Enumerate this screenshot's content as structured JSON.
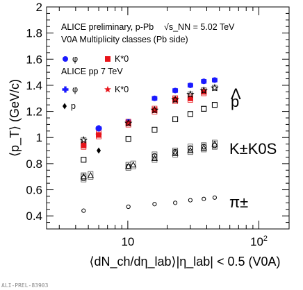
{
  "chart_data": {
    "type": "scatter",
    "title": "",
    "xscale": "log",
    "xlim": [
      2.4,
      170
    ],
    "ylim": [
      0.3,
      2.0
    ],
    "xticks": [
      {
        "v": 10,
        "label": "10"
      },
      {
        "v": 100,
        "label": "10^2"
      }
    ],
    "yticks": [
      "0.4",
      "0.6",
      "0.8",
      "1",
      "1.2",
      "1.4",
      "1.6",
      "1.8",
      "2"
    ],
    "xlabel": "⟨dN_ch/dη_lab⟩|η_lab| < 0.5 (V0A)",
    "ylabel": "⟨p_T⟩ (GeV/c)",
    "grid": false,
    "legend_position": "top-left",
    "annotations": {
      "header": [
        "ALICE preliminary, p-Pb",
        "√s_NN = 5.02 TeV",
        "V0A Multiplicity classes (Pb side)"
      ],
      "pp_header": "ALICE pp 7 TeV",
      "species": [
        "Λ",
        "p",
        "K±K0S",
        "π±"
      ],
      "footer": "ALI-PREL-83903"
    },
    "series": [
      {
        "name": "φ",
        "system": "p-Pb",
        "color": "#1a1aff",
        "marker": "circle",
        "x": [
          4.6,
          6.0,
          10.1,
          16.0,
          23.0,
          30.0,
          38.0,
          46.0
        ],
        "y": [
          0.94,
          1.07,
          1.12,
          1.3,
          1.36,
          1.4,
          1.43,
          1.44
        ]
      },
      {
        "name": "K*0",
        "system": "p-Pb",
        "color": "#e8141a",
        "marker": "square",
        "x": [
          4.6,
          6.0,
          10.1,
          16.0,
          23.0,
          30.0,
          38.0
        ],
        "y": [
          0.94,
          1.02,
          1.11,
          1.21,
          1.29,
          1.3,
          1.35
        ]
      },
      {
        "name": "φ",
        "system": "pp 7 TeV",
        "color": "#1a1aff",
        "marker": "cross",
        "x": [
          6.0
        ],
        "y": [
          1.07
        ]
      },
      {
        "name": "K*0",
        "system": "pp 7 TeV",
        "color": "#e8141a",
        "marker": "star",
        "x": [
          6.0
        ],
        "y": [
          1.02
        ]
      },
      {
        "name": "p",
        "system": "pp 7 TeV",
        "color": "#000000",
        "marker": "diamond",
        "x": [
          6.0
        ],
        "y": [
          0.9
        ]
      },
      {
        "name": "Λ",
        "color": "#000000",
        "marker": "star-open",
        "x": [
          4.6,
          10.1,
          16.0,
          23.0,
          30.0,
          38.0,
          46.0
        ],
        "y": [
          0.98,
          1.11,
          1.21,
          1.29,
          1.33,
          1.36,
          1.38
        ]
      },
      {
        "name": "p",
        "color": "#000000",
        "marker": "square-open",
        "x": [
          4.6,
          10.1,
          16.0,
          23.0,
          30.0,
          38.0,
          46.0
        ],
        "y": [
          0.83,
          0.99,
          1.06,
          1.14,
          1.18,
          1.22,
          1.25
        ]
      },
      {
        "name": "K±",
        "color": "#000000",
        "marker": "triangle-open",
        "x": [
          4.6,
          5.2,
          10.1,
          11.0,
          16.0,
          23.0,
          30.0,
          38.0,
          46.0
        ],
        "y": [
          0.7,
          0.71,
          0.78,
          0.79,
          0.84,
          0.88,
          0.9,
          0.92,
          0.95
        ]
      },
      {
        "name": "K0S",
        "color": "#000000",
        "marker": "circle-open",
        "x": [
          4.6,
          10.1,
          16.0,
          23.0,
          30.0,
          38.0,
          46.0
        ],
        "y": [
          0.69,
          0.78,
          0.86,
          0.89,
          0.92,
          0.93,
          0.94
        ]
      },
      {
        "name": "π±",
        "color": "#000000",
        "marker": "circle-open-small",
        "x": [
          4.6,
          10.1,
          16.0,
          23.0,
          30.0,
          38.0,
          46.0
        ],
        "y": [
          0.44,
          0.47,
          0.49,
          0.5,
          0.52,
          0.53,
          0.54
        ]
      }
    ]
  }
}
